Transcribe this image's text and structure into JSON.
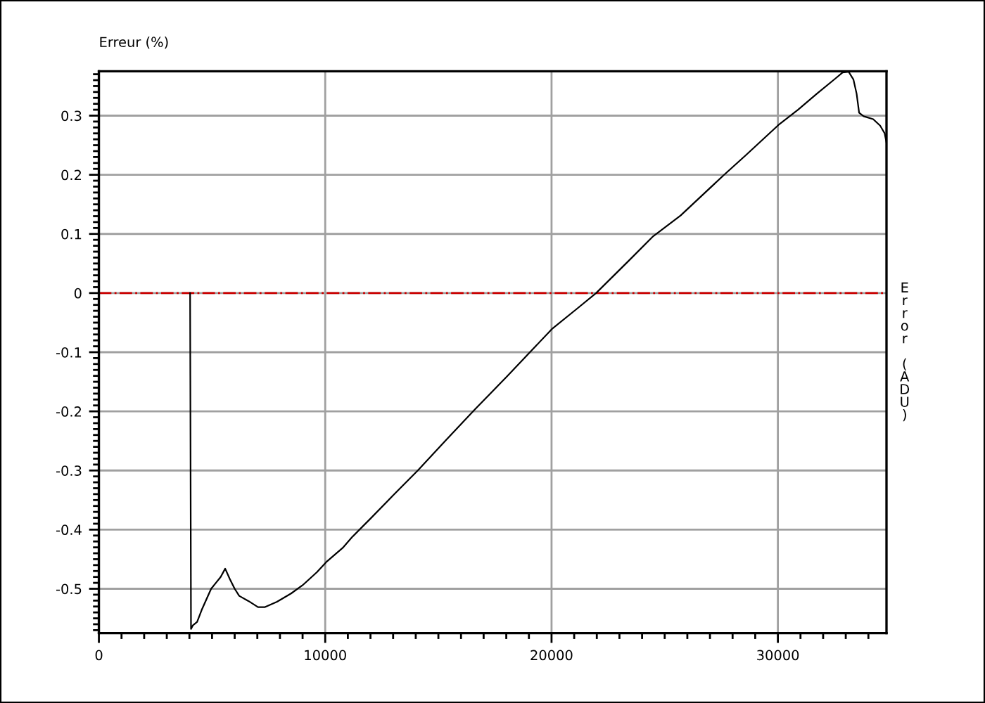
{
  "chart_data": {
    "type": "line",
    "ylabel": "Erreur (%)",
    "y2label": "Error (ADU)",
    "xlim": [
      0,
      34800
    ],
    "ylim": [
      -0.575,
      0.375
    ],
    "xticks": [
      0,
      10000,
      20000,
      30000
    ],
    "yticks": [
      -0.5,
      -0.4,
      -0.3,
      -0.2,
      -0.1,
      0,
      0.1,
      0.2,
      0.3
    ],
    "grid": true,
    "line_style": "solid",
    "ref_lines": [
      {
        "axis": "y",
        "value": 0,
        "color": "#cc0000",
        "line_style": "dashdot"
      }
    ],
    "series": [
      {
        "color": "#000000",
        "x": [
          4030,
          4040,
          4070,
          4150,
          4340,
          4540,
          4960,
          5170,
          5380,
          5580,
          5790,
          6000,
          6200,
          6620,
          7030,
          7340,
          7870,
          8490,
          9000,
          9630,
          10040,
          10770,
          11180,
          12010,
          13050,
          14090,
          15330,
          16580,
          18030,
          19170,
          20040,
          21140,
          21970,
          23420,
          24460,
          25700,
          27570,
          28610,
          30020,
          30890,
          31720,
          32550,
          32860,
          33130,
          33340,
          33480,
          33590,
          33790,
          34210,
          34520,
          34720,
          34800
        ],
        "values": [
          0,
          -0.14,
          -0.568,
          -0.562,
          -0.556,
          -0.536,
          -0.5,
          -0.49,
          -0.48,
          -0.466,
          -0.484,
          -0.5,
          -0.512,
          -0.521,
          -0.531,
          -0.531,
          -0.522,
          -0.508,
          -0.494,
          -0.472,
          -0.455,
          -0.431,
          -0.413,
          -0.381,
          -0.34,
          -0.3,
          -0.249,
          -0.198,
          -0.141,
          -0.095,
          -0.06,
          -0.026,
          0,
          0.055,
          0.095,
          0.131,
          0.198,
          0.234,
          0.284,
          0.31,
          0.337,
          0.363,
          0.373,
          0.374,
          0.361,
          0.337,
          0.305,
          0.299,
          0.294,
          0.283,
          0.27,
          0.254
        ]
      }
    ]
  }
}
